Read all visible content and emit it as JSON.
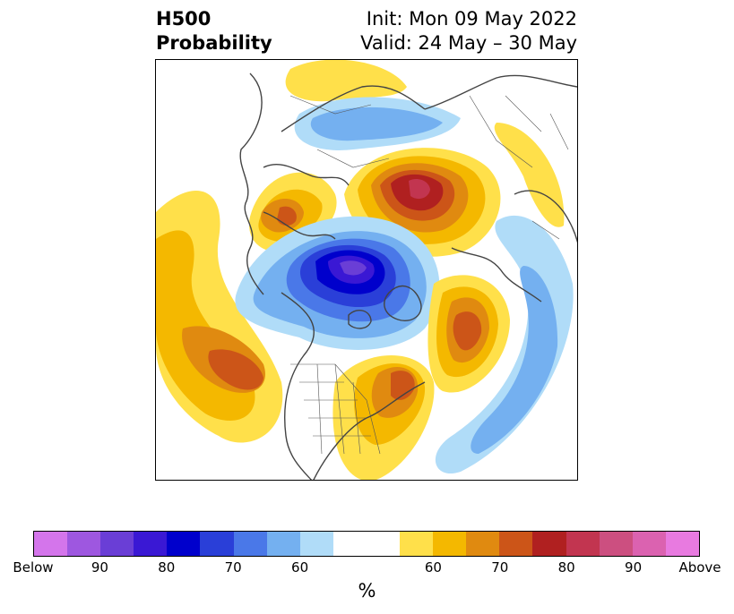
{
  "title": {
    "left_line1": "H500",
    "left_line2": "Probability",
    "right_line1": "Init: Mon 09 May 2022",
    "right_line2": "Valid: 24 May – 30 May"
  },
  "map": {
    "projection": "north-polar-stereographic",
    "anomaly_regions": [
      {
        "location": "Scandinavia / northwest Russia",
        "sign": "above",
        "peak_percent": 80
      },
      {
        "location": "Greenland / Arctic",
        "sign": "below",
        "peak_percent": 90
      },
      {
        "location": "North Pacific",
        "sign": "above",
        "peak_percent": 70
      },
      {
        "location": "Eastern North America",
        "sign": "above",
        "peak_percent": 70
      },
      {
        "location": "Siberia / Alaska",
        "sign": "above",
        "peak_percent": 70
      },
      {
        "location": "Western Europe",
        "sign": "above",
        "peak_percent": 70
      },
      {
        "location": "Eastern Europe / Urals",
        "sign": "below",
        "peak_percent": 60
      },
      {
        "location": "North Atlantic",
        "sign": "below",
        "peak_percent": 60
      }
    ]
  },
  "colorbar": {
    "colors": [
      "#d475eb",
      "#9e57e0",
      "#6a3ed6",
      "#3a18d4",
      "#0000cc",
      "#2a3fd8",
      "#4a78e8",
      "#74b0f0",
      "#b0dcf8",
      "#ffffff",
      "#ffffff",
      "#ffe04a",
      "#f4b800",
      "#e08a10",
      "#cc5518",
      "#b02020",
      "#c23550",
      "#cc4f80",
      "#db62b0",
      "#e87ae0"
    ],
    "tick_labels": [
      "Below",
      "90",
      "80",
      "70",
      "60",
      "60",
      "70",
      "80",
      "90",
      "Above"
    ],
    "unit": "%"
  }
}
